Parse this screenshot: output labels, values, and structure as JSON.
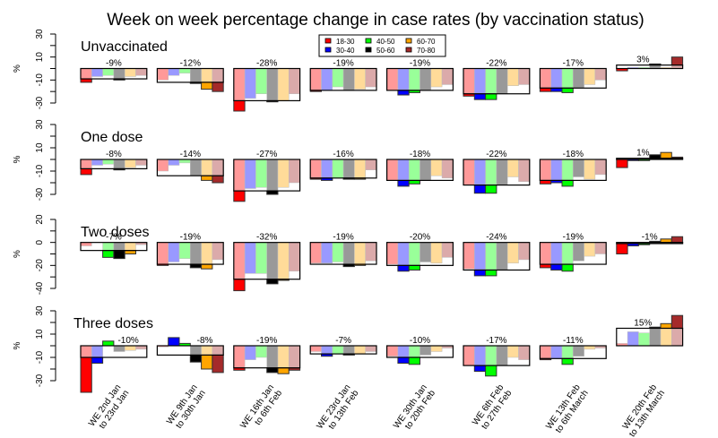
{
  "chart_data": {
    "type": "bar",
    "title": "Week on week percentage change in case rates (by vaccination status)",
    "ylabel": "%",
    "categories": [
      "WE 2nd Jan\nto 23rd Jan",
      "WE 9th Jan\nto 30th Jan",
      "WE 16th Jan\nto 6th Feb",
      "WE 23rd Jan\nto 13th Feb",
      "WE 30th Jan\nto 20th Feb",
      "WE 6th Feb\nto 27th Feb",
      "WE 13th Feb\nto 6th March",
      "WE 20th Feb\nto 13th March"
    ],
    "age_groups": [
      {
        "name": "18-30",
        "color": "#ff0000",
        "pale": "#ff9999"
      },
      {
        "name": "30-40",
        "color": "#0000ff",
        "pale": "#9999ff"
      },
      {
        "name": "40-50",
        "color": "#00ff00",
        "pale": "#99ff99"
      },
      {
        "name": "50-60",
        "color": "#000000",
        "pale": "#999999"
      },
      {
        "name": "60-70",
        "color": "#ffa500",
        "pale": "#ffdb99"
      },
      {
        "name": "70-80",
        "color": "#a52a2a",
        "pale": "#dbaaaa"
      }
    ],
    "legend_position": "top-center",
    "panels": [
      {
        "name": "Unvaccinated",
        "ylim": [
          -30,
          30
        ],
        "yticks": [
          30,
          10,
          -10,
          -30
        ],
        "totals": [
          -9,
          -12,
          -28,
          -19,
          -19,
          -22,
          -17,
          3
        ],
        "total_labels": [
          "-9%",
          "-12%",
          "-28%",
          "-19%",
          "-19%",
          "-22%",
          "-17%",
          "3%"
        ],
        "values": [
          [
            -12,
            -7,
            -6,
            -10,
            -7,
            -6
          ],
          [
            -10,
            -6,
            -4,
            -13,
            -18,
            -20
          ],
          [
            -37,
            -26,
            -22,
            -29,
            -28,
            -22
          ],
          [
            -20,
            -19,
            -16,
            -19,
            -18,
            -16
          ],
          [
            -19,
            -23,
            -21,
            -19,
            -16,
            -14
          ],
          [
            -24,
            -27,
            -27,
            -22,
            -15,
            -14
          ],
          [
            -20,
            -20,
            -21,
            -17,
            -14,
            -10
          ],
          [
            -2,
            1,
            1,
            4,
            1,
            10
          ]
        ]
      },
      {
        "name": "One dose",
        "ylim": [
          -30,
          30
        ],
        "yticks": [
          30,
          10,
          -10,
          -30
        ],
        "totals": [
          -8,
          -14,
          -27,
          -16,
          -18,
          -22,
          -18,
          1
        ],
        "total_labels": [
          "-8%",
          "-14%",
          "-27%",
          "-16%",
          "-18%",
          "-22%",
          "-18%",
          "1%"
        ],
        "values": [
          [
            -13,
            -5,
            -4,
            -9,
            -7,
            -5
          ],
          [
            -10,
            -5,
            -3,
            -14,
            -18,
            -20
          ],
          [
            -36,
            -25,
            -24,
            -30,
            -24,
            -20
          ],
          [
            -17,
            -18,
            -16,
            -17,
            -17,
            -9
          ],
          [
            -18,
            -23,
            -21,
            -18,
            -14,
            -16
          ],
          [
            -22,
            -29,
            -29,
            -22,
            -15,
            -19
          ],
          [
            -21,
            -20,
            -23,
            -15,
            -17,
            -13
          ],
          [
            -7,
            -1,
            -1,
            4,
            6,
            2
          ]
        ]
      },
      {
        "name": "Two doses",
        "ylim": [
          -40,
          20
        ],
        "yticks": [
          20,
          0,
          -20,
          -40
        ],
        "totals": [
          -7,
          -19,
          -32,
          -19,
          -20,
          -24,
          -19,
          -1
        ],
        "total_labels": [
          "-7%",
          "-19%",
          "-32%",
          "-19%",
          "-20%",
          "-24%",
          "-19%",
          "-1%"
        ],
        "values": [
          [
            -3,
            0,
            -13,
            -14,
            -10,
            -2
          ],
          [
            -20,
            -17,
            -14,
            -22,
            -23,
            -15
          ],
          [
            -42,
            -27,
            -27,
            -36,
            -33,
            -25
          ],
          [
            -18,
            -18,
            -17,
            -21,
            -20,
            -16
          ],
          [
            -19,
            -25,
            -24,
            -17,
            -18,
            -13
          ],
          [
            -23,
            -29,
            -29,
            -24,
            -18,
            -15
          ],
          [
            -22,
            -24,
            -25,
            -16,
            -12,
            -10
          ],
          [
            -10,
            -3,
            -2,
            1,
            3,
            5
          ]
        ]
      },
      {
        "name": "Three doses",
        "ylim": [
          -30,
          30
        ],
        "yticks": [
          30,
          10,
          -10,
          -30
        ],
        "totals": [
          -10,
          -8,
          -19,
          -7,
          -10,
          -17,
          -11,
          15
        ],
        "total_labels": [
          "-10%",
          "-8%",
          "-19%",
          "-7%",
          "-10%",
          "-17%",
          "-11%",
          "15%"
        ],
        "values": [
          [
            -40,
            -15,
            4,
            -5,
            -4,
            -3
          ],
          [
            -1,
            7,
            2,
            -14,
            -20,
            -23
          ],
          [
            -21,
            -12,
            -10,
            -23,
            -24,
            -21
          ],
          [
            -5,
            -9,
            -7,
            -8,
            -7,
            -5
          ],
          [
            -9,
            -15,
            -16,
            -8,
            -5,
            -2
          ],
          [
            -17,
            -22,
            -26,
            -17,
            -10,
            -12
          ],
          [
            -12,
            -11,
            -16,
            -9,
            -3,
            -2
          ],
          [
            2,
            12,
            11,
            16,
            19,
            26
          ]
        ]
      }
    ]
  }
}
